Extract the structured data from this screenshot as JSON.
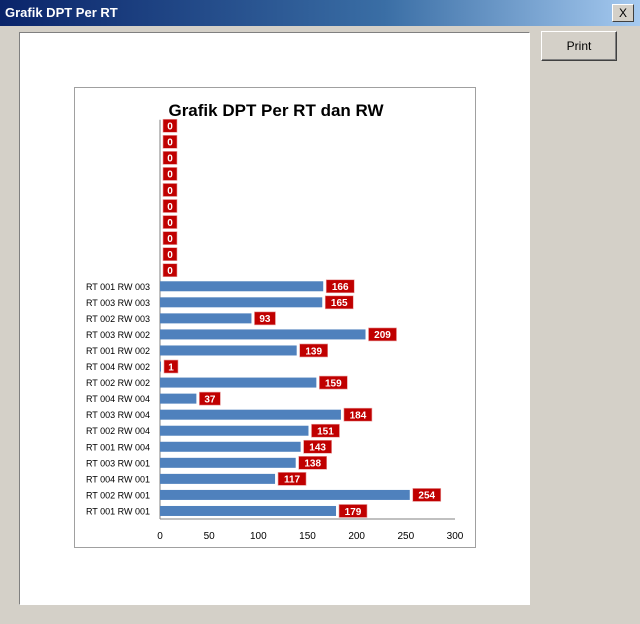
{
  "window": {
    "title": "Grafik DPT Per RT",
    "close_label": "X"
  },
  "toolbar": {
    "print_label": "Print"
  },
  "chart_data": {
    "type": "bar",
    "orientation": "horizontal",
    "title": "Grafik DPT Per RT dan RW",
    "xlabel": "",
    "ylabel": "",
    "xlim": [
      0,
      300
    ],
    "xticks": [
      0,
      50,
      100,
      150,
      200,
      250,
      300
    ],
    "grid": false,
    "legend": "none",
    "bar_color": "#4f81bd",
    "label_bg": "#c00000",
    "categories": [
      "RT 001 RW 001",
      "RT 002 RW 001",
      "RT 004 RW 001",
      "RT 003 RW 001",
      "RT 001 RW 004",
      "RT 002 RW 004",
      "RT 003 RW 004",
      "RT 004 RW 004",
      "RT 002 RW 002",
      "RT 004 RW 002",
      "RT 001 RW 002",
      "RT 003 RW 002",
      "RT 002 RW 003",
      "RT 003 RW 003",
      "RT 001 RW 003",
      "",
      "",
      "",
      "",
      "",
      "",
      "",
      "",
      "",
      ""
    ],
    "values": [
      179,
      254,
      117,
      138,
      143,
      151,
      184,
      37,
      159,
      1,
      139,
      209,
      93,
      165,
      166,
      0,
      0,
      0,
      0,
      0,
      0,
      0,
      0,
      0,
      0
    ]
  }
}
